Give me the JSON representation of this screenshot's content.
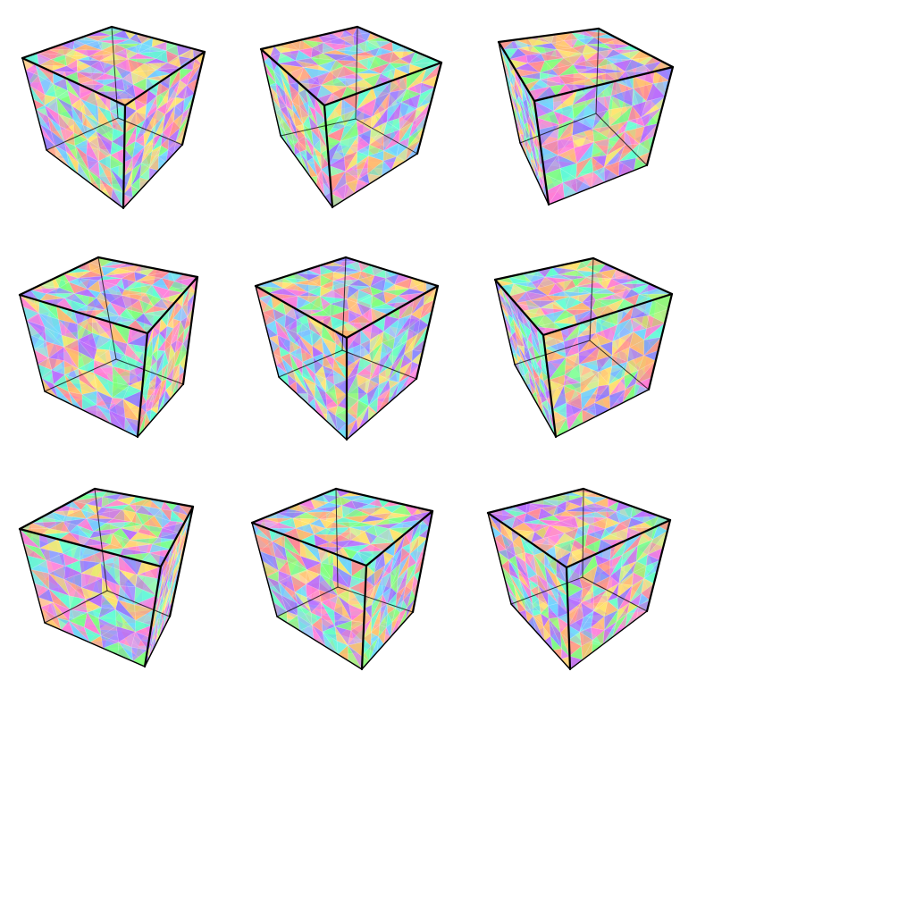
{
  "grid": {
    "rows": 3,
    "cols": 3
  },
  "palette": [
    "#ff7ad9",
    "#b56bff",
    "#8f7bff",
    "#6fd3ff",
    "#5dffd0",
    "#7dff7a",
    "#ffe36a",
    "#ffb86b",
    "#ff8b8b"
  ],
  "edge_color": "#000000",
  "background_color": "#ffffff",
  "cubes": [
    {
      "id": "c1",
      "top_face_visible": true
    },
    {
      "id": "c2",
      "top_face_visible": true
    },
    {
      "id": "c3",
      "top_face_visible": true
    },
    {
      "id": "c4",
      "top_face_visible": true
    },
    {
      "id": "c5",
      "top_face_visible": true
    },
    {
      "id": "c6",
      "top_face_visible": true
    },
    {
      "id": "c7",
      "top_face_visible": true
    },
    {
      "id": "c8",
      "top_face_visible": true
    },
    {
      "id": "c9",
      "top_face_visible": true
    }
  ]
}
